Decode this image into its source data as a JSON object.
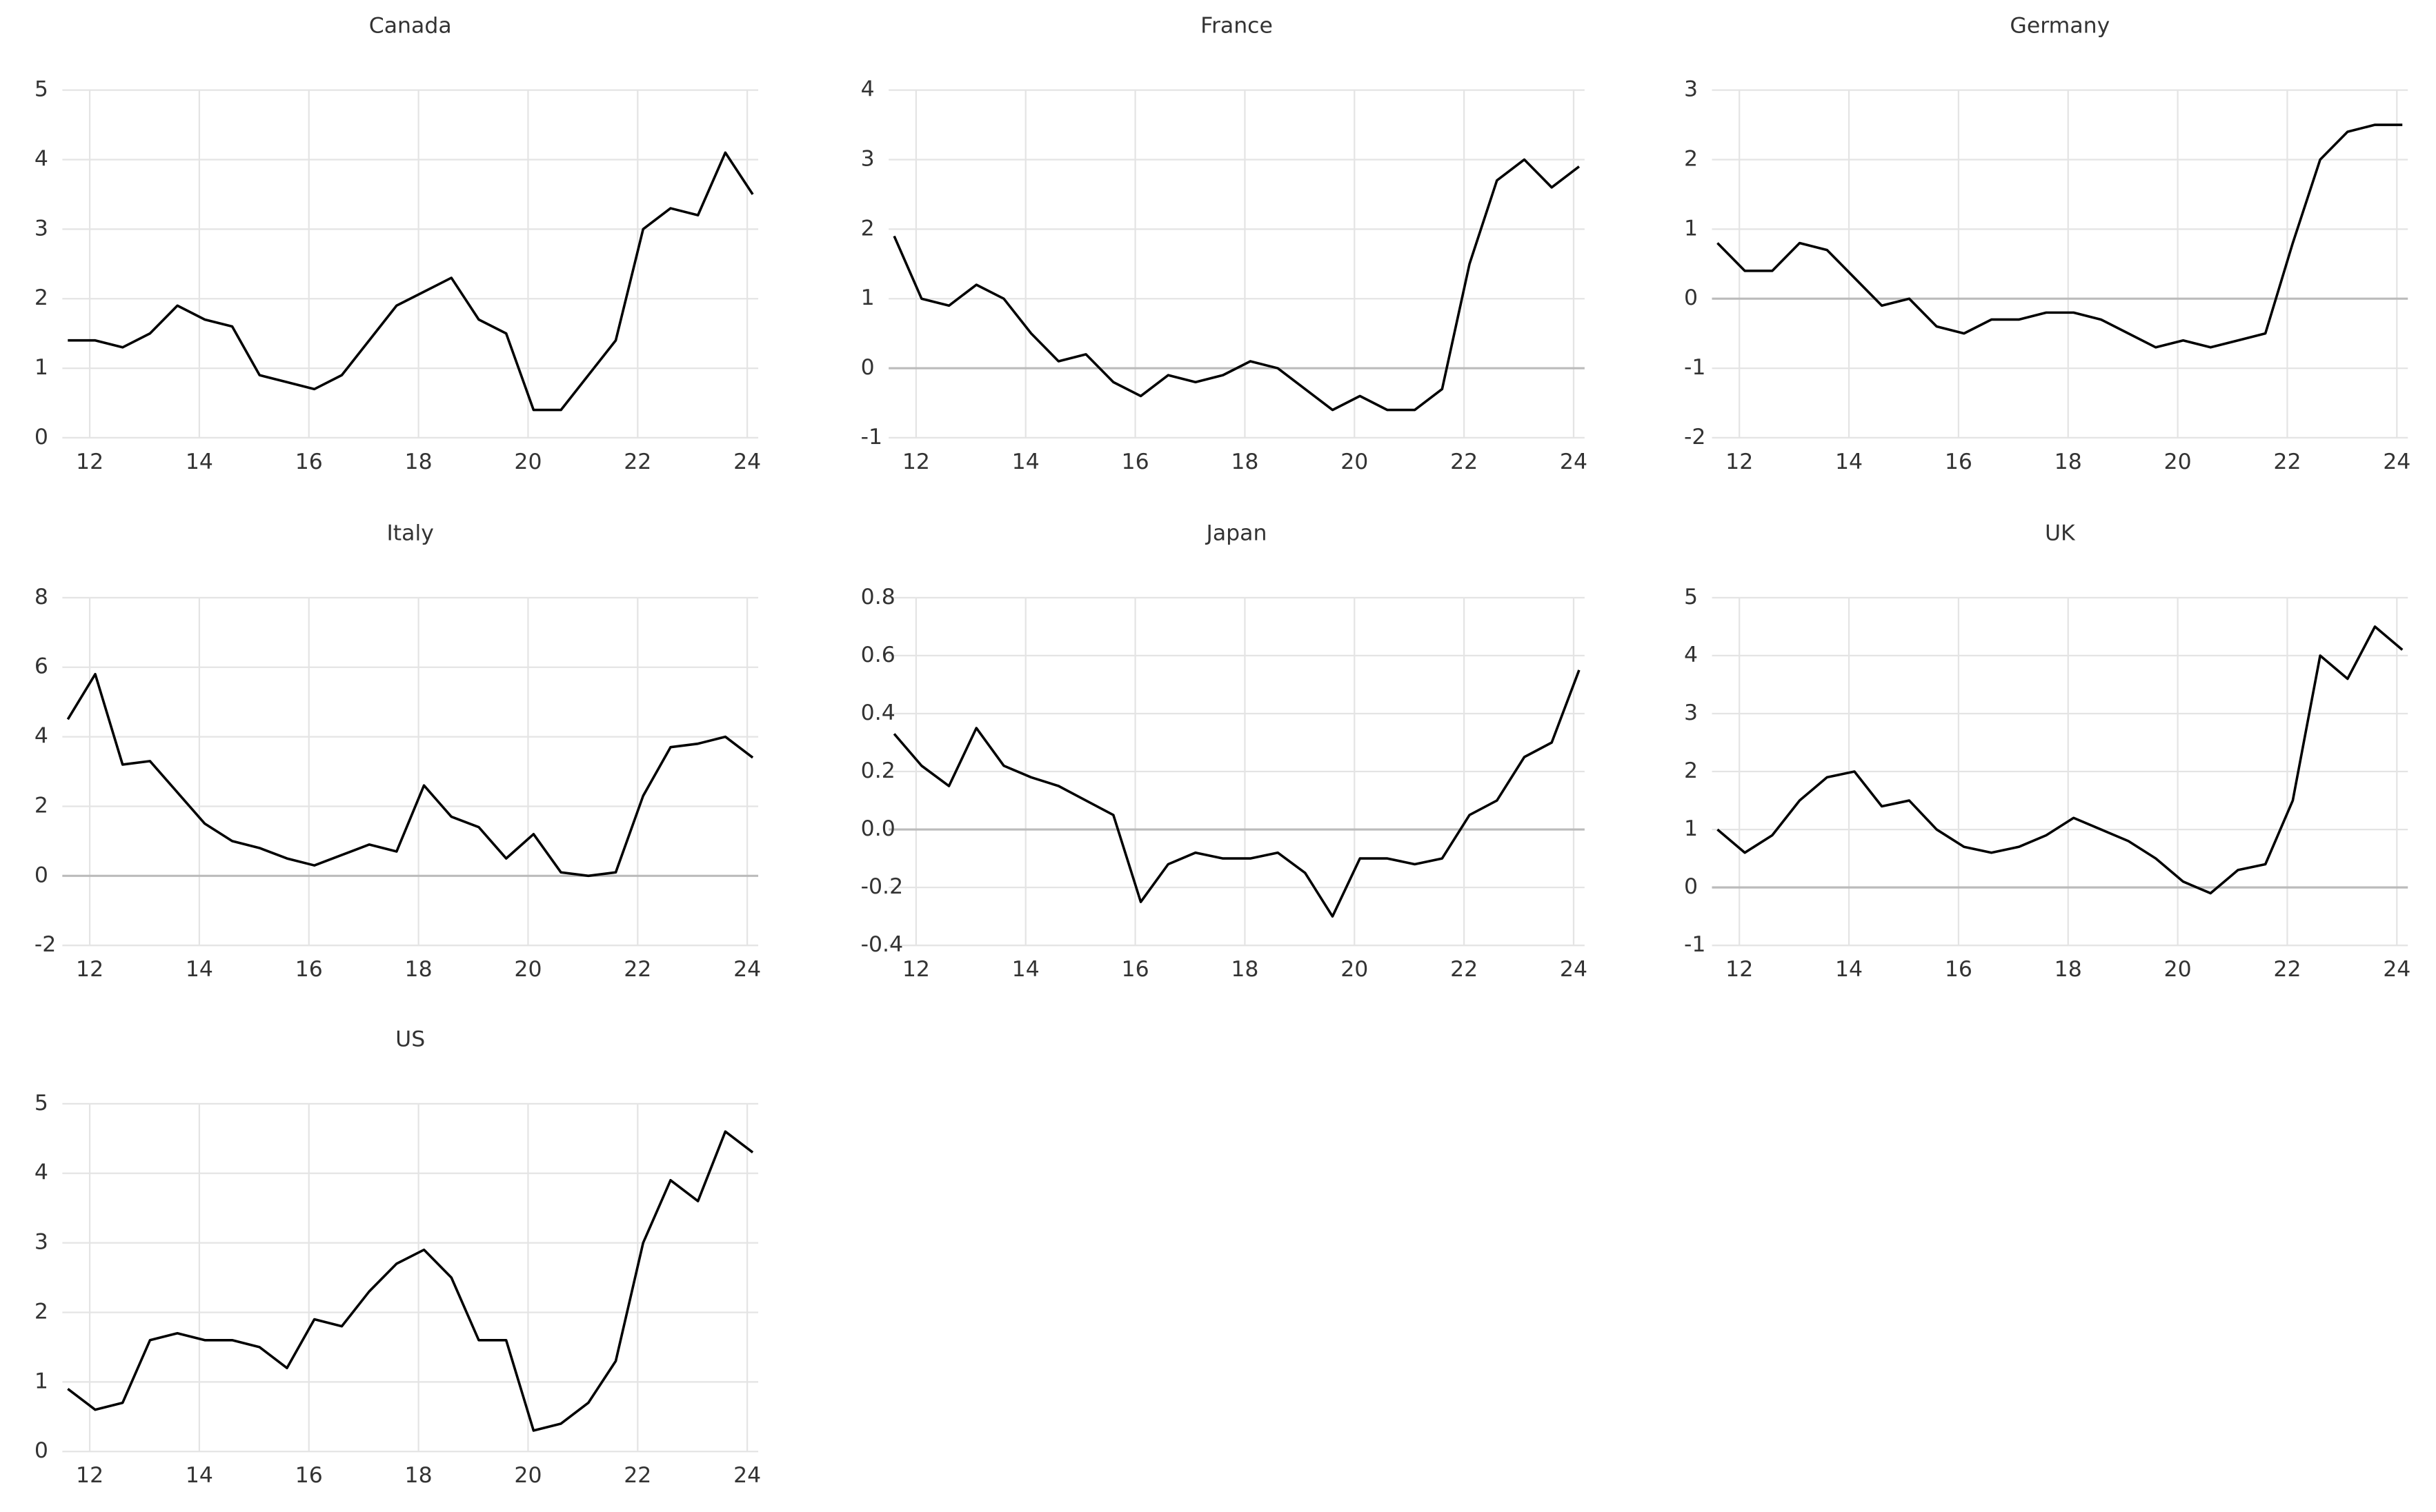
{
  "chart_data": [
    {
      "type": "line",
      "title": "Canada",
      "color": "#000000",
      "grid": true,
      "x": [
        11.6,
        12.1,
        12.6,
        13.1,
        13.6,
        14.1,
        14.6,
        15.1,
        15.6,
        16.1,
        16.6,
        17.1,
        17.6,
        18.1,
        18.6,
        19.1,
        19.6,
        20.1,
        20.6,
        21.1,
        21.6,
        22.1,
        22.6,
        23.1,
        23.6,
        24.1
      ],
      "values": [
        1.4,
        1.4,
        1.3,
        1.5,
        1.9,
        1.7,
        1.6,
        0.9,
        0.8,
        0.7,
        0.9,
        1.4,
        1.9,
        2.1,
        2.3,
        1.7,
        1.5,
        0.4,
        0.4,
        0.9,
        1.4,
        3.0,
        3.3,
        3.2,
        4.1,
        3.5
      ],
      "xlim": [
        11.5,
        24.2
      ],
      "xticks": [
        12,
        14,
        16,
        18,
        20,
        22,
        24
      ],
      "ylim": [
        0,
        5
      ],
      "yticks": [
        0,
        1,
        2,
        3,
        4,
        5
      ]
    },
    {
      "type": "line",
      "title": "France",
      "color": "#000000",
      "grid": true,
      "x": [
        11.6,
        12.1,
        12.6,
        13.1,
        13.6,
        14.1,
        14.6,
        15.1,
        15.6,
        16.1,
        16.6,
        17.1,
        17.6,
        18.1,
        18.6,
        19.1,
        19.6,
        20.1,
        20.6,
        21.1,
        21.6,
        22.1,
        22.6,
        23.1,
        23.6,
        24.1
      ],
      "values": [
        1.9,
        1.0,
        0.9,
        1.2,
        1.0,
        0.5,
        0.1,
        0.2,
        -0.2,
        -0.4,
        -0.1,
        -0.2,
        -0.1,
        0.1,
        0.0,
        -0.3,
        -0.6,
        -0.4,
        -0.6,
        -0.6,
        -0.3,
        1.5,
        2.7,
        3.0,
        2.6,
        2.9
      ],
      "xlim": [
        11.5,
        24.2
      ],
      "xticks": [
        12,
        14,
        16,
        18,
        20,
        22,
        24
      ],
      "ylim": [
        -1,
        4
      ],
      "yticks": [
        -1,
        0,
        1,
        2,
        3,
        4
      ]
    },
    {
      "type": "line",
      "title": "Germany",
      "color": "#000000",
      "grid": true,
      "x": [
        11.6,
        12.1,
        12.6,
        13.1,
        13.6,
        14.1,
        14.6,
        15.1,
        15.6,
        16.1,
        16.6,
        17.1,
        17.6,
        18.1,
        18.6,
        19.1,
        19.6,
        20.1,
        20.6,
        21.1,
        21.6,
        22.1,
        22.6,
        23.1,
        23.6,
        24.1
      ],
      "values": [
        0.8,
        0.4,
        0.4,
        0.8,
        0.7,
        0.3,
        -0.1,
        0.0,
        -0.4,
        -0.5,
        -0.3,
        -0.3,
        -0.2,
        -0.2,
        -0.3,
        -0.5,
        -0.7,
        -0.6,
        -0.7,
        -0.6,
        -0.5,
        0.8,
        2.0,
        2.4,
        2.5,
        2.5
      ],
      "xlim": [
        11.5,
        24.2
      ],
      "xticks": [
        12,
        14,
        16,
        18,
        20,
        22,
        24
      ],
      "ylim": [
        -2,
        3
      ],
      "yticks": [
        -2,
        -1,
        0,
        1,
        2,
        3
      ]
    },
    {
      "type": "line",
      "title": "Italy",
      "color": "#000000",
      "grid": true,
      "x": [
        11.6,
        12.1,
        12.6,
        13.1,
        13.6,
        14.1,
        14.6,
        15.1,
        15.6,
        16.1,
        16.6,
        17.1,
        17.6,
        18.1,
        18.6,
        19.1,
        19.6,
        20.1,
        20.6,
        21.1,
        21.6,
        22.1,
        22.6,
        23.1,
        23.6,
        24.1
      ],
      "values": [
        4.5,
        5.8,
        3.2,
        3.3,
        2.4,
        1.5,
        1.0,
        0.8,
        0.5,
        0.3,
        0.6,
        0.9,
        0.7,
        2.6,
        1.7,
        1.4,
        0.5,
        1.2,
        0.1,
        0.0,
        0.1,
        2.3,
        3.7,
        3.8,
        4.0,
        3.4
      ],
      "xlim": [
        11.5,
        24.2
      ],
      "xticks": [
        12,
        14,
        16,
        18,
        20,
        22,
        24
      ],
      "ylim": [
        -2,
        8
      ],
      "yticks": [
        -2,
        0,
        2,
        4,
        6,
        8
      ]
    },
    {
      "type": "line",
      "title": "Japan",
      "color": "#000000",
      "grid": true,
      "x": [
        11.6,
        12.1,
        12.6,
        13.1,
        13.6,
        14.1,
        14.6,
        15.1,
        15.6,
        16.1,
        16.6,
        17.1,
        17.6,
        18.1,
        18.6,
        19.1,
        19.6,
        20.1,
        20.6,
        21.1,
        21.6,
        22.1,
        22.6,
        23.1,
        23.6,
        24.1
      ],
      "values": [
        0.33,
        0.22,
        0.15,
        0.35,
        0.22,
        0.18,
        0.15,
        0.1,
        0.05,
        -0.25,
        -0.12,
        -0.08,
        -0.1,
        -0.1,
        -0.08,
        -0.15,
        -0.3,
        -0.1,
        -0.1,
        -0.12,
        -0.1,
        0.05,
        0.1,
        0.25,
        0.3,
        0.55
      ],
      "xlim": [
        11.5,
        24.2
      ],
      "xticks": [
        12,
        14,
        16,
        18,
        20,
        22,
        24
      ],
      "ylim": [
        -0.4,
        0.8
      ],
      "yticks": [
        -0.4,
        -0.2,
        {
          "value": 0,
          "label": "0.0"
        },
        0.2,
        0.4,
        0.6,
        0.8
      ]
    },
    {
      "type": "line",
      "title": "UK",
      "color": "#000000",
      "grid": true,
      "x": [
        11.6,
        12.1,
        12.6,
        13.1,
        13.6,
        14.1,
        14.6,
        15.1,
        15.6,
        16.1,
        16.6,
        17.1,
        17.6,
        18.1,
        18.6,
        19.1,
        19.6,
        20.1,
        20.6,
        21.1,
        21.6,
        22.1,
        22.6,
        23.1,
        23.6,
        24.1
      ],
      "values": [
        1.0,
        0.6,
        0.9,
        1.5,
        1.9,
        2.0,
        1.4,
        1.5,
        1.0,
        0.7,
        0.6,
        0.7,
        0.9,
        1.2,
        1.0,
        0.8,
        0.5,
        0.1,
        -0.1,
        0.3,
        0.4,
        1.5,
        4.0,
        3.6,
        4.5,
        4.1
      ],
      "xlim": [
        11.5,
        24.2
      ],
      "xticks": [
        12,
        14,
        16,
        18,
        20,
        22,
        24
      ],
      "ylim": [
        -1,
        5
      ],
      "yticks": [
        -1,
        0,
        1,
        2,
        3,
        4,
        5
      ]
    },
    {
      "type": "line",
      "title": "US",
      "color": "#000000",
      "grid": true,
      "x": [
        11.6,
        12.1,
        12.6,
        13.1,
        13.6,
        14.1,
        14.6,
        15.1,
        15.6,
        16.1,
        16.6,
        17.1,
        17.6,
        18.1,
        18.6,
        19.1,
        19.6,
        20.1,
        20.6,
        21.1,
        21.6,
        22.1,
        22.6,
        23.1,
        23.6,
        24.1
      ],
      "values": [
        0.9,
        0.6,
        0.7,
        1.6,
        1.7,
        1.6,
        1.6,
        1.5,
        1.2,
        1.9,
        1.8,
        2.3,
        2.7,
        2.9,
        2.5,
        1.6,
        1.6,
        0.3,
        0.4,
        0.7,
        1.3,
        3.0,
        3.9,
        3.6,
        4.6,
        4.3
      ],
      "xlim": [
        11.5,
        24.2
      ],
      "xticks": [
        12,
        14,
        16,
        18,
        20,
        22,
        24
      ],
      "ylim": [
        0,
        5
      ],
      "yticks": [
        0,
        1,
        2,
        3,
        4,
        5
      ]
    }
  ]
}
